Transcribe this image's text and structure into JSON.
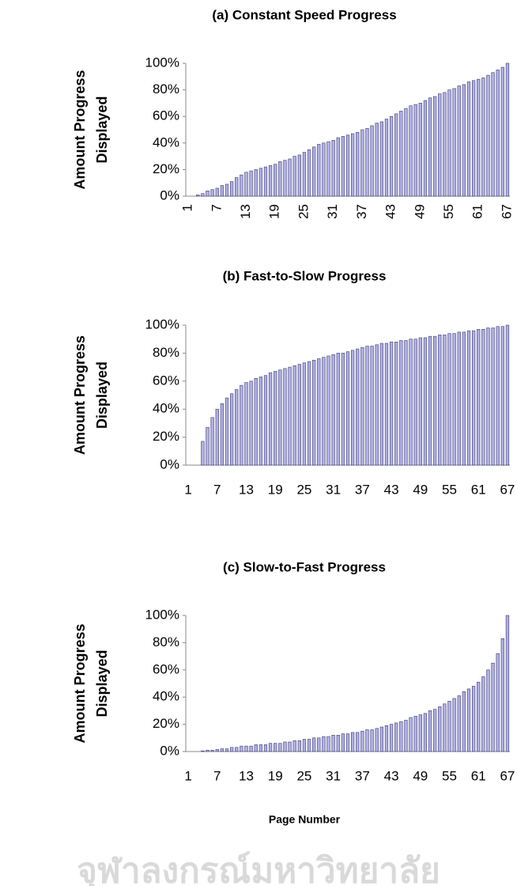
{
  "chart_data": [
    {
      "type": "bar",
      "title": "(a) Constant Speed Progress",
      "ylabel": [
        "Amount Progress",
        "Displayed"
      ],
      "categories": [
        "1",
        null,
        null,
        null,
        null,
        null,
        "7",
        null,
        null,
        null,
        null,
        null,
        "13",
        null,
        null,
        null,
        null,
        null,
        "19",
        null,
        null,
        null,
        null,
        null,
        "25",
        null,
        null,
        null,
        null,
        null,
        "31",
        null,
        null,
        null,
        null,
        null,
        "37",
        null,
        null,
        null,
        null,
        null,
        "43",
        null,
        null,
        null,
        null,
        null,
        "49",
        null,
        null,
        null,
        null,
        null,
        "55",
        null,
        null,
        null,
        null,
        null,
        "61",
        null,
        null,
        null,
        null,
        null,
        "67"
      ],
      "values": [
        0,
        0,
        1,
        2,
        4,
        5,
        6,
        8,
        9,
        11,
        14,
        16,
        18,
        19,
        20,
        21,
        22,
        23,
        24,
        26,
        27,
        28,
        30,
        31,
        33,
        35,
        37,
        39,
        40,
        41,
        42,
        44,
        45,
        46,
        47,
        48,
        50,
        51,
        53,
        55,
        56,
        58,
        60,
        62,
        64,
        66,
        68,
        69,
        70,
        72,
        74,
        75,
        77,
        78,
        80,
        81,
        83,
        84,
        86,
        87,
        88,
        89,
        91,
        93,
        95,
        97,
        100
      ],
      "color": "#b0b0e8",
      "xtick_rotation": -90,
      "ylim": [
        0,
        100
      ],
      "yticks": [
        {
          "value": 0,
          "label": "0%"
        },
        {
          "value": 20,
          "label": "20%"
        },
        {
          "value": 40,
          "label": "40%"
        },
        {
          "value": 60,
          "label": "60%"
        },
        {
          "value": 80,
          "label": "80%"
        },
        {
          "value": 100,
          "label": "100%"
        }
      ]
    },
    {
      "type": "bar",
      "title": "(b) Fast-to-Slow Progress",
      "ylabel": [
        "Amount Progress",
        "Displayed"
      ],
      "categories": [
        "1",
        null,
        null,
        null,
        null,
        null,
        "7",
        null,
        null,
        null,
        null,
        null,
        "13",
        null,
        null,
        null,
        null,
        null,
        "19",
        null,
        null,
        null,
        null,
        null,
        "25",
        null,
        null,
        null,
        null,
        null,
        "31",
        null,
        null,
        null,
        null,
        null,
        "37",
        null,
        null,
        null,
        null,
        null,
        "43",
        null,
        null,
        null,
        null,
        null,
        "49",
        null,
        null,
        null,
        null,
        null,
        "55",
        null,
        null,
        null,
        null,
        null,
        "61",
        null,
        null,
        null,
        null,
        null,
        "67"
      ],
      "values": [
        0,
        0,
        0,
        17,
        27,
        34,
        40,
        44,
        48,
        51,
        54,
        57,
        59,
        60,
        62,
        63,
        64,
        66,
        67,
        68,
        69,
        70,
        71,
        72,
        73,
        74,
        75,
        76,
        77,
        78,
        79,
        80,
        80,
        81,
        82,
        83,
        84,
        85,
        85,
        86,
        87,
        87,
        88,
        88,
        89,
        89,
        90,
        90,
        91,
        91,
        92,
        92,
        93,
        93,
        94,
        94,
        95,
        95,
        96,
        96,
        97,
        97,
        98,
        98,
        99,
        99,
        100
      ],
      "color": "#b0b0e8",
      "xtick_rotation": 0,
      "ylim": [
        0,
        100
      ],
      "yticks": [
        {
          "value": 0,
          "label": "0%"
        },
        {
          "value": 20,
          "label": "20%"
        },
        {
          "value": 40,
          "label": "40%"
        },
        {
          "value": 60,
          "label": "60%"
        },
        {
          "value": 80,
          "label": "80%"
        },
        {
          "value": 100,
          "label": "100%"
        }
      ]
    },
    {
      "type": "bar",
      "title": "(c) Slow-to-Fast Progress",
      "ylabel": [
        "Amount Progress",
        "Displayed"
      ],
      "xlabel": "Page Number",
      "categories": [
        "1",
        null,
        null,
        null,
        null,
        null,
        "7",
        null,
        null,
        null,
        null,
        null,
        "13",
        null,
        null,
        null,
        null,
        null,
        "19",
        null,
        null,
        null,
        null,
        null,
        "25",
        null,
        null,
        null,
        null,
        null,
        "31",
        null,
        null,
        null,
        null,
        null,
        "37",
        null,
        null,
        null,
        null,
        null,
        "43",
        null,
        null,
        null,
        null,
        null,
        "49",
        null,
        null,
        null,
        null,
        null,
        "55",
        null,
        null,
        null,
        null,
        null,
        "61",
        null,
        null,
        null,
        null,
        null,
        "67"
      ],
      "values": [
        0,
        0,
        0,
        0.5,
        1,
        1,
        1.5,
        2,
        2,
        3,
        3,
        4,
        4,
        4,
        5,
        5,
        5,
        6,
        6,
        6,
        7,
        7,
        8,
        8,
        9,
        9,
        10,
        10,
        11,
        11,
        12,
        12,
        13,
        13,
        14,
        14,
        15,
        16,
        16,
        17,
        18,
        19,
        20,
        21,
        22,
        23,
        25,
        26,
        27,
        28,
        30,
        31,
        33,
        35,
        37,
        39,
        41,
        44,
        46,
        48,
        51,
        55,
        60,
        65,
        72,
        83,
        100
      ],
      "color": "#b0b0e8",
      "xtick_rotation": 0,
      "ylim": [
        0,
        100
      ],
      "yticks": [
        {
          "value": 0,
          "label": "0%"
        },
        {
          "value": 20,
          "label": "20%"
        },
        {
          "value": 40,
          "label": "40%"
        },
        {
          "value": 60,
          "label": "60%"
        },
        {
          "value": 80,
          "label": "80%"
        },
        {
          "value": 100,
          "label": "100%"
        }
      ]
    }
  ],
  "watermark": "จุฬาลงกรณ์มหาวิทยาลัย"
}
